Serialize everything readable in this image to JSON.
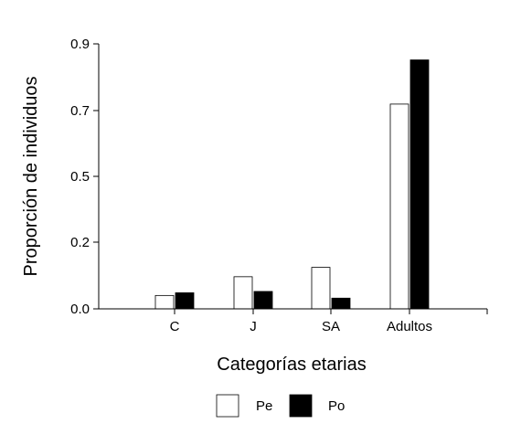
{
  "chart_data": {
    "type": "bar",
    "categories": [
      "C",
      "J",
      "SA",
      "Adultos"
    ],
    "series": [
      {
        "name": "Pe",
        "values": [
          0.05,
          0.12,
          0.155,
          0.765
        ],
        "fill": "#ffffff",
        "stroke": "#000000"
      },
      {
        "name": "Po",
        "values": [
          0.06,
          0.065,
          0.04,
          0.93
        ],
        "fill": "#000000",
        "stroke": "#000000"
      }
    ],
    "y_ticks": [
      "0.0",
      "0.2",
      "0.5",
      "0.7",
      "0.9"
    ],
    "xlabel": "Categorías etarias",
    "ylabel": "Proporción de individuos",
    "ylim": [
      0.0,
      0.99
    ],
    "grid": false,
    "legend_position": "bottom-center"
  }
}
